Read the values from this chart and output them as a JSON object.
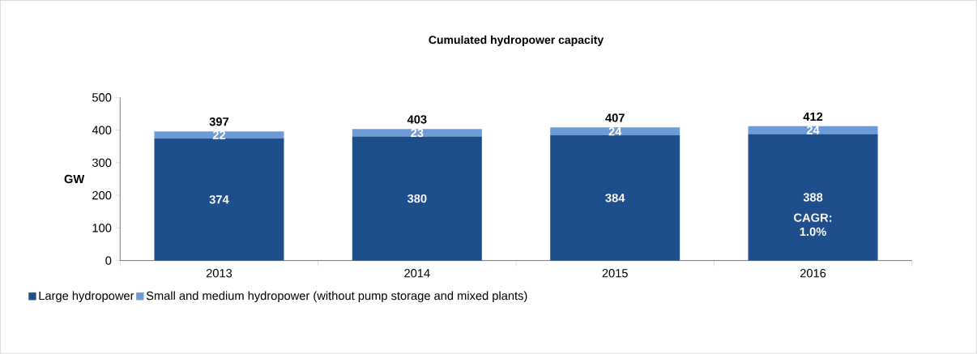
{
  "chart_data": {
    "type": "bar",
    "title": "Cumulated hydropower capacity",
    "ylabel": "GW",
    "categories": [
      "2013",
      "2014",
      "2015",
      "2016"
    ],
    "series": [
      {
        "name": "Large hydropower",
        "color": "#1f4e8c",
        "values": [
          374,
          380,
          384,
          388
        ]
      },
      {
        "name": "Small and medium hydropower (without pump storage and mixed plants)",
        "color": "#6d9bd6",
        "values": [
          22,
          23,
          24,
          24
        ]
      }
    ],
    "stacked": true,
    "data_labels": true,
    "totals": [
      "397",
      "403",
      "407",
      "412"
    ],
    "ylim": [
      0,
      500
    ],
    "yticks": [
      0,
      100,
      200,
      300,
      400,
      500
    ],
    "grid": false,
    "legend": "bottom left",
    "annotations": [
      "CAGR: 1.0%"
    ]
  }
}
